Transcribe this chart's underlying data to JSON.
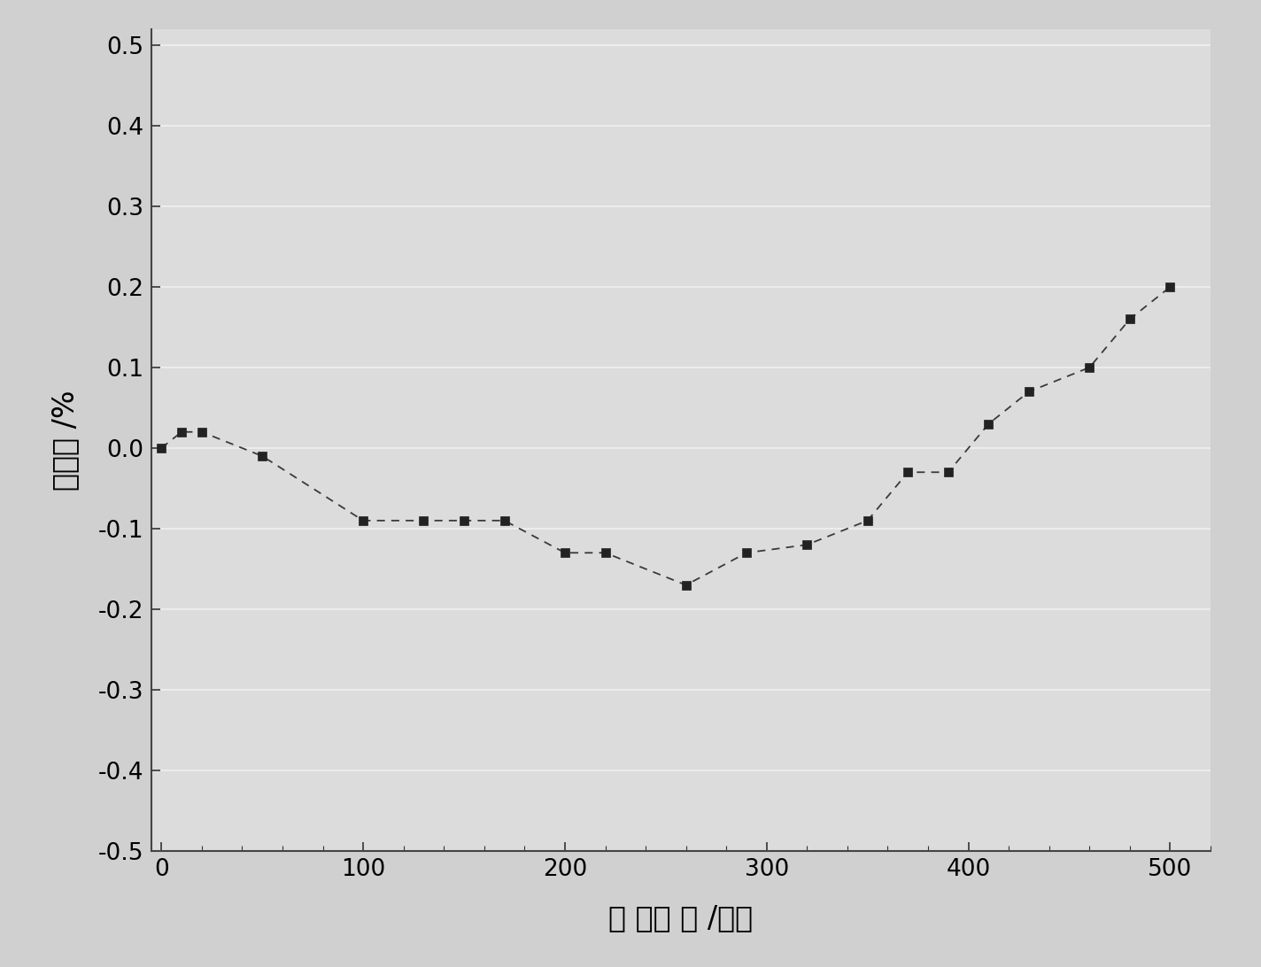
{
  "x": [
    0,
    10,
    20,
    50,
    100,
    130,
    150,
    170,
    200,
    220,
    260,
    290,
    320,
    350,
    370,
    390,
    410,
    430,
    460,
    480,
    500
  ],
  "y": [
    0.0,
    0.02,
    0.02,
    -0.01,
    -0.09,
    -0.09,
    -0.09,
    -0.09,
    -0.13,
    -0.13,
    -0.17,
    -0.13,
    -0.12,
    -0.09,
    -0.03,
    -0.03,
    0.03,
    0.07,
    0.1,
    0.16,
    0.2
  ],
  "xlabel": "氧 化时 间 /小时",
  "ylabel": "失重率 /%",
  "xlim": [
    -5,
    520
  ],
  "ylim": [
    -0.5,
    0.52
  ],
  "xticks": [
    0,
    100,
    200,
    300,
    400,
    500
  ],
  "yticks": [
    -0.5,
    -0.4,
    -0.3,
    -0.2,
    -0.1,
    0.0,
    0.1,
    0.2,
    0.3,
    0.4,
    0.5
  ],
  "line_color": "#3a3a3a",
  "marker_color": "#222222",
  "plot_bg_color": "#dcdcdc",
  "fig_bg_color": "#d0d0d0",
  "grid_color": "#f0f0f0",
  "marker_size": 7,
  "line_width": 1.3,
  "font_size_label": 24,
  "font_size_tick": 19
}
